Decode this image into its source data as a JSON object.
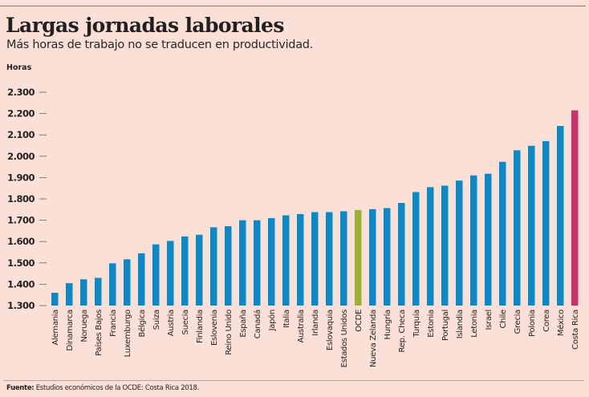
{
  "header": {
    "title": "Largas jornadas laborales",
    "subtitle": "Más horas de trabajo no se traducen en productividad."
  },
  "footer": {
    "source_label": "Fuente:",
    "source_text": " Estudios económicos de la OCDE: Costa Rica 2018."
  },
  "colors": {
    "background": "#fae0d6",
    "default_bar": "#1286c0",
    "oecd_bar": "#9cb03a",
    "highlight_bar": "#c0386a"
  },
  "chart_data": {
    "type": "bar",
    "title": "Largas jornadas laborales",
    "subtitle": "Más horas de trabajo no se traducen en productividad.",
    "xlabel": "",
    "ylabel": "Horas",
    "ylim": [
      1300,
      2300
    ],
    "yticks": [
      1300,
      1400,
      1500,
      1600,
      1700,
      1800,
      1900,
      2000,
      2100,
      2200,
      2300
    ],
    "ytick_labels": [
      "1.300",
      "1.400",
      "1.500",
      "1.600",
      "1.700",
      "1.800",
      "1.900",
      "2.000",
      "2.100",
      "2.200",
      "2.300"
    ],
    "grid": false,
    "legend": "none",
    "categories": [
      "Alemania",
      "Dinamarca",
      "Noruega",
      "Países Bajos",
      "Francia",
      "Luxemburgo",
      "Bélgica",
      "Suiza",
      "Austria",
      "Suecia",
      "Finlandia",
      "Eslovenia",
      "Reino Unido",
      "España",
      "Canadá",
      "Japón",
      "Italia",
      "Australia",
      "Irlanda",
      "Eslovaquia",
      "Estados Unidos",
      "OCDE",
      "Nueva Zelanda",
      "Hungría",
      "Rep. Checa",
      "Turquía",
      "Estonia",
      "Portugal",
      "Islandia",
      "Letonia",
      "Israel",
      "Chile",
      "Grecia",
      "Polonia",
      "Corea",
      "México",
      "Costa Rica"
    ],
    "values": [
      1360,
      1405,
      1423,
      1430,
      1498,
      1517,
      1545,
      1587,
      1603,
      1624,
      1632,
      1667,
      1672,
      1700,
      1700,
      1710,
      1723,
      1729,
      1738,
      1738,
      1742,
      1748,
      1752,
      1757,
      1781,
      1832,
      1855,
      1862,
      1886,
      1910,
      1918,
      1974,
      2028,
      2049,
      2071,
      2142,
      2215
    ],
    "highlights": {
      "OCDE": "oecd_bar",
      "Costa Rica": "highlight_bar"
    },
    "source": "Fuente: Estudios económicos de la OCDE: Costa Rica 2018."
  }
}
